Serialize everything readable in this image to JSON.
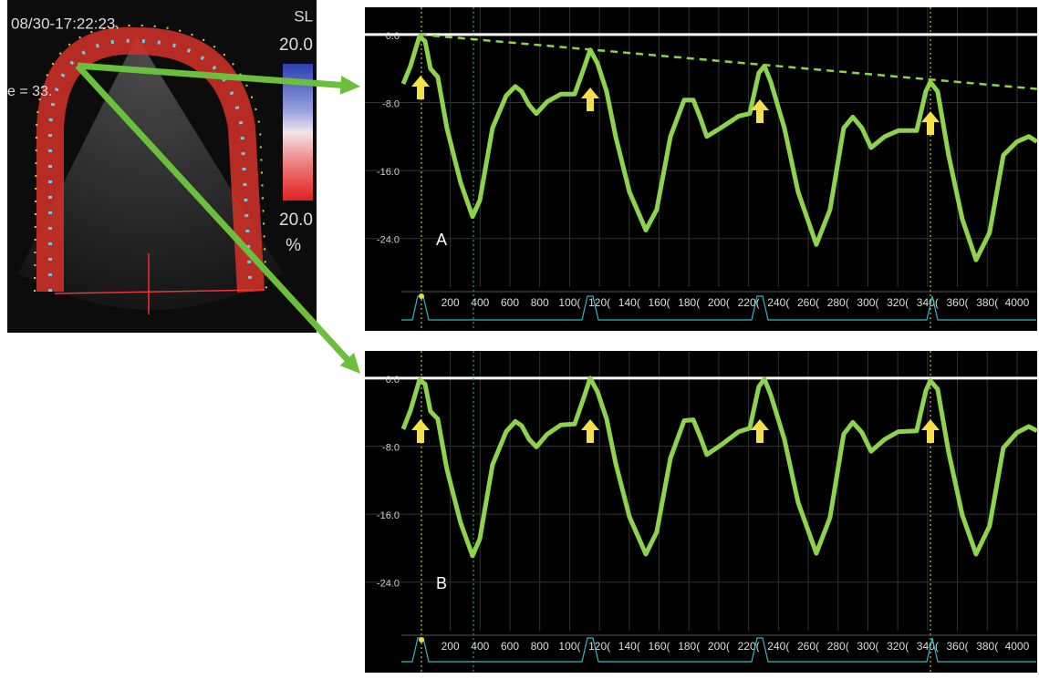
{
  "echo": {
    "timestamp": "08/30-17:22:23.",
    "mode": "SL",
    "scale_max": "20.0",
    "scale_min": "20.0",
    "unit": "%",
    "depth": "e = 33."
  },
  "chart_data": [
    {
      "type": "line",
      "label": "A",
      "x": [
        -116,
        -67,
        -6,
        31,
        67,
        116,
        177,
        269,
        349,
        398,
        483,
        575,
        636,
        679,
        728,
        777,
        850,
        942,
        1034,
        1095,
        1138,
        1187,
        1248,
        1309,
        1401,
        1511,
        1584,
        1676,
        1768,
        1829,
        1878,
        1920,
        2012,
        2134,
        2208,
        2269,
        2306,
        2349,
        2440,
        2532,
        2654,
        2746,
        2838,
        2899,
        2960,
        3021,
        3113,
        3205,
        3327,
        3388,
        3419,
        3468,
        3541,
        3633,
        3725,
        3816,
        3908,
        4000,
        4079,
        4134
      ],
      "series": [
        {
          "color": "#8dd34c",
          "values": [
            -5.8,
            -3.7,
            -0.2,
            -0.8,
            -4.0,
            -5.0,
            -11.0,
            -17.4,
            -21.4,
            -19.5,
            -11.0,
            -7.2,
            -6.1,
            -6.7,
            -8.3,
            -9.3,
            -7.9,
            -7.0,
            -7.0,
            -4.0,
            -1.8,
            -3.4,
            -6.7,
            -12.0,
            -18.5,
            -23.0,
            -20.6,
            -12.0,
            -7.7,
            -7.7,
            -9.9,
            -12.0,
            -11.0,
            -9.6,
            -9.3,
            -4.5,
            -3.7,
            -5.6,
            -11.0,
            -18.5,
            -24.7,
            -20.6,
            -11.0,
            -9.7,
            -11.0,
            -13.3,
            -12.0,
            -11.3,
            -11.3,
            -6.7,
            -5.6,
            -6.7,
            -14.2,
            -21.7,
            -26.5,
            -23.3,
            -14.2,
            -12.6,
            -12.0,
            -12.6
          ]
        }
      ],
      "trend": {
        "x": [
          -6,
          4134
        ],
        "values": [
          0,
          -6.4
        ],
        "color": "#8dd34c"
      },
      "xlim": [
        -128,
        4135
      ],
      "ylim": [
        -29.7,
        3.2
      ],
      "xticks": [
        {
          "value": 200,
          "label": "200"
        },
        {
          "value": 400,
          "label": "400"
        },
        {
          "value": 600,
          "label": "600"
        },
        {
          "value": 800,
          "label": "800"
        },
        {
          "value": 1000,
          "label": "100("
        },
        {
          "value": 1200,
          "label": "120("
        },
        {
          "value": 1400,
          "label": "140("
        },
        {
          "value": 1600,
          "label": "160("
        },
        {
          "value": 1800,
          "label": "180("
        },
        {
          "value": 2000,
          "label": "200("
        },
        {
          "value": 2200,
          "label": "220("
        },
        {
          "value": 2400,
          "label": "240("
        },
        {
          "value": 2600,
          "label": "260("
        },
        {
          "value": 2800,
          "label": "280("
        },
        {
          "value": 3000,
          "label": "300("
        },
        {
          "value": 3200,
          "label": "320("
        },
        {
          "value": 3400,
          "label": "340("
        },
        {
          "value": 3600,
          "label": "360("
        },
        {
          "value": 3800,
          "label": "380("
        },
        {
          "value": 4000,
          "label": "4000"
        }
      ],
      "yticks": [
        {
          "value": 0,
          "label": "0.0"
        },
        {
          "value": -8,
          "label": "-8.0"
        },
        {
          "value": -16,
          "label": "-16.0"
        },
        {
          "value": -24,
          "label": "-24.0"
        }
      ],
      "grid": true
    },
    {
      "type": "line",
      "label": "B",
      "x": [
        -116,
        -67,
        -6,
        31,
        67,
        116,
        177,
        269,
        349,
        398,
        483,
        575,
        636,
        679,
        728,
        777,
        850,
        942,
        1034,
        1095,
        1138,
        1187,
        1248,
        1309,
        1401,
        1511,
        1584,
        1676,
        1768,
        1829,
        1878,
        1920,
        2012,
        2134,
        2208,
        2269,
        2306,
        2349,
        2440,
        2532,
        2654,
        2746,
        2838,
        2899,
        2960,
        3021,
        3113,
        3205,
        3327,
        3388,
        3419,
        3468,
        3541,
        3633,
        3725,
        3816,
        3908,
        4000,
        4079,
        4134
      ],
      "series": [
        {
          "color": "#8dd34c",
          "values": [
            -6.0,
            -3.8,
            -0.2,
            -0.7,
            -3.9,
            -4.8,
            -10.7,
            -17.0,
            -20.9,
            -18.9,
            -10.2,
            -6.3,
            -5.1,
            -5.6,
            -7.2,
            -8.1,
            -6.6,
            -5.5,
            -5.4,
            -2.3,
            0.0,
            -1.6,
            -4.8,
            -10.0,
            -16.3,
            -20.7,
            -18.1,
            -9.4,
            -5.0,
            -4.9,
            -7.0,
            -9.0,
            -7.9,
            -6.3,
            -5.9,
            -1.0,
            -0.1,
            -2.0,
            -7.2,
            -14.6,
            -20.6,
            -16.4,
            -6.6,
            -5.2,
            -6.4,
            -8.6,
            -7.2,
            -6.3,
            -6.2,
            -1.5,
            -0.3,
            -1.3,
            -8.7,
            -16.1,
            -20.7,
            -17.4,
            -8.2,
            -6.4,
            -5.7,
            -6.2
          ]
        }
      ],
      "xlim": [
        -128,
        4135
      ],
      "ylim": [
        -29.7,
        3.2
      ],
      "xticks": [
        {
          "value": 200,
          "label": "200"
        },
        {
          "value": 400,
          "label": "400"
        },
        {
          "value": 600,
          "label": "600"
        },
        {
          "value": 800,
          "label": "800"
        },
        {
          "value": 1000,
          "label": "100("
        },
        {
          "value": 1200,
          "label": "120("
        },
        {
          "value": 1400,
          "label": "140("
        },
        {
          "value": 1600,
          "label": "160("
        },
        {
          "value": 1800,
          "label": "180("
        },
        {
          "value": 2000,
          "label": "200("
        },
        {
          "value": 2200,
          "label": "220("
        },
        {
          "value": 2400,
          "label": "240("
        },
        {
          "value": 2600,
          "label": "260("
        },
        {
          "value": 2800,
          "label": "280("
        },
        {
          "value": 3000,
          "label": "300("
        },
        {
          "value": 3200,
          "label": "320("
        },
        {
          "value": 3400,
          "label": "340("
        },
        {
          "value": 3600,
          "label": "360("
        },
        {
          "value": 3800,
          "label": "380("
        },
        {
          "value": 4000,
          "label": "4000"
        }
      ],
      "yticks": [
        {
          "value": 0,
          "label": "0.0"
        },
        {
          "value": -8,
          "label": "-8.0"
        },
        {
          "value": -16,
          "label": "-16.0"
        },
        {
          "value": -24,
          "label": "-24.0"
        }
      ],
      "grid": true
    }
  ]
}
